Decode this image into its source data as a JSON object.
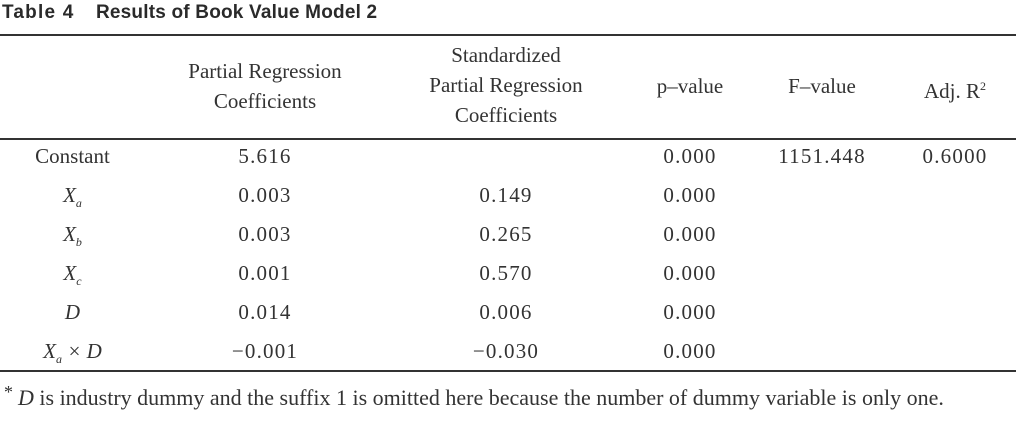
{
  "caption": {
    "number": "Table 4",
    "title": "Results of Book Value Model 2"
  },
  "headers": {
    "prc": [
      "Partial Regression",
      "Coefficients"
    ],
    "sprc": [
      "Standardized",
      "Partial Regression",
      "Coefficients"
    ],
    "p": "p–value",
    "f": "F–value",
    "adj": "Adj. R",
    "adj_sup": "2"
  },
  "rows": [
    {
      "var": "Constant",
      "italic": false,
      "prc": "5.616",
      "sprc": "",
      "p": "0.000",
      "f": "1151.448",
      "adj": "0.6000"
    },
    {
      "var": "X",
      "sub": "a",
      "italic": true,
      "prc": "0.003",
      "sprc": "0.149",
      "p": "0.000",
      "f": "",
      "adj": ""
    },
    {
      "var": "X",
      "sub": "b",
      "italic": true,
      "prc": "0.003",
      "sprc": "0.265",
      "p": "0.000",
      "f": "",
      "adj": ""
    },
    {
      "var": "X",
      "sub": "c",
      "italic": true,
      "prc": "0.001",
      "sprc": "0.570",
      "p": "0.000",
      "f": "",
      "adj": ""
    },
    {
      "var": "D",
      "italic": true,
      "prc": "0.014",
      "sprc": "0.006",
      "p": "0.000",
      "f": "",
      "adj": ""
    },
    {
      "var": "X",
      "sub": "a",
      "suffix": " × D",
      "italic": true,
      "prc": "−0.001",
      "sprc": "−0.030",
      "p": "0.000",
      "f": "",
      "adj": ""
    }
  ],
  "footnote": {
    "marker": "*",
    "symbol": "D",
    "text": " is industry dummy and the suffix 1 is omitted here because the number of dummy variable is only one."
  }
}
